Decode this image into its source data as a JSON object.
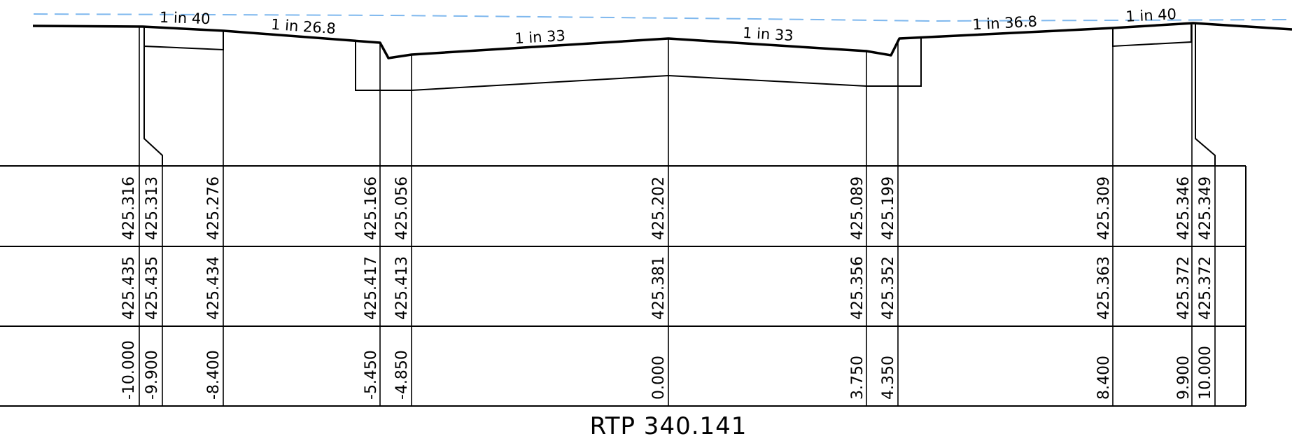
{
  "title": "RTP 340.141",
  "colors": {
    "line": "#000000",
    "reference_line": "#7fb8ee",
    "background": "#ffffff"
  },
  "grades": [
    "1 in 40",
    "1 in 26.8",
    "1 in 33",
    "1 in 33",
    "1 in 36.8",
    "1 in 40"
  ],
  "rows": {
    "levels_a": [
      "425.316",
      "425.313",
      "425.276",
      "425.166",
      "425.056",
      "425.202",
      "425.089",
      "425.199",
      "425.309",
      "425.346",
      "425.349"
    ],
    "levels_b": [
      "425.435",
      "425.435",
      "425.434",
      "425.417",
      "425.413",
      "425.381",
      "425.356",
      "425.352",
      "425.363",
      "425.372",
      "425.372"
    ],
    "offsets": [
      "-10.000",
      "-9.900",
      "-8.400",
      "-5.450",
      "-4.850",
      "0.000",
      "3.750",
      "4.350",
      "8.400",
      "9.900",
      "10.000"
    ]
  }
}
